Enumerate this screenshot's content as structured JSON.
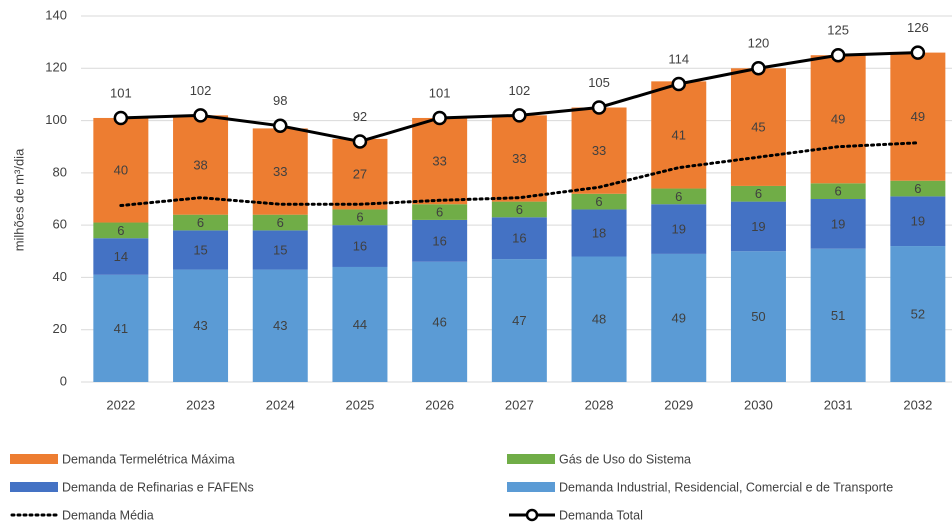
{
  "chart_data": {
    "type": "stacked_bar_line",
    "y_label": "milhões de m³/dia",
    "categories": [
      "2022",
      "2023",
      "2024",
      "2025",
      "2026",
      "2027",
      "2028",
      "2029",
      "2030",
      "2031",
      "2032"
    ],
    "ylim": [
      0,
      140
    ],
    "yticks": [
      0,
      20,
      40,
      60,
      80,
      100,
      120,
      140
    ],
    "grid": true,
    "series": [
      {
        "name": "Demanda Industrial, Residencial, Comercial e de Transporte",
        "kind": "bar",
        "color": "#5b9bd5",
        "values": [
          41,
          43,
          43,
          44,
          46,
          47,
          48,
          49,
          50,
          51,
          52
        ]
      },
      {
        "name": "Demanda de Refinarias e FAFENs",
        "kind": "bar",
        "color": "#4472c4",
        "values": [
          14,
          15,
          15,
          16,
          16,
          16,
          18,
          19,
          19,
          19,
          19
        ]
      },
      {
        "name": "Gás de Uso do Sistema",
        "kind": "bar",
        "color": "#70ad47",
        "values": [
          6,
          6,
          6,
          6,
          6,
          6,
          6,
          6,
          6,
          6,
          6
        ]
      },
      {
        "name": "Demanda Termelétrica Máxima",
        "kind": "bar",
        "color": "#ed7d31",
        "values": [
          40,
          38,
          33,
          27,
          33,
          33,
          33,
          41,
          45,
          49,
          49
        ]
      },
      {
        "name": "Demanda Média",
        "kind": "line",
        "dotted": true,
        "color": "#000000",
        "values": [
          67.5,
          70.5,
          68,
          68,
          69.5,
          70.5,
          74.5,
          82,
          86,
          90,
          91.5
        ]
      },
      {
        "name": "Demanda Total",
        "kind": "line",
        "markers": true,
        "labels": true,
        "color": "#000000",
        "values": [
          101,
          102,
          98,
          92,
          101,
          102,
          105,
          114,
          120,
          125,
          126
        ]
      }
    ]
  }
}
